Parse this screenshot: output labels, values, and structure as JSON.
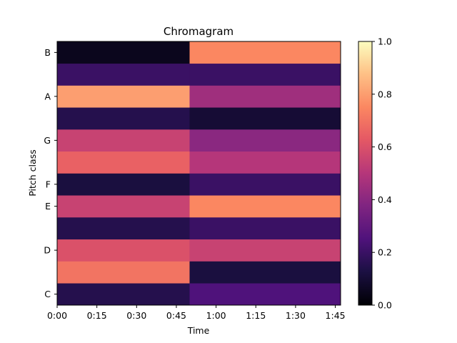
{
  "chart_data": {
    "type": "heatmap",
    "title": "Chromagram",
    "xlabel": "Time",
    "ylabel": "Pitch class",
    "x_ticks": [
      "0:00",
      "0:15",
      "0:30",
      "0:45",
      "1:00",
      "1:15",
      "1:30",
      "1:45"
    ],
    "x_tick_seconds": [
      0,
      15,
      30,
      45,
      60,
      75,
      90,
      105
    ],
    "xlim_seconds": [
      0,
      107
    ],
    "pitch_classes": [
      "C",
      "C#",
      "D",
      "D#",
      "E",
      "F",
      "F#",
      "G",
      "G#",
      "A",
      "A#",
      "B"
    ],
    "y_ticks": [
      "C",
      "D",
      "E",
      "F",
      "G",
      "A",
      "B"
    ],
    "colormap": "magma",
    "colorbar": {
      "vmin": 0.0,
      "vmax": 1.0,
      "ticks": [
        "0.0",
        "0.2",
        "0.4",
        "0.6",
        "0.8",
        "1.0"
      ],
      "tick_values": [
        0.0,
        0.2,
        0.4,
        0.6,
        0.8,
        1.0
      ]
    },
    "segments": [
      {
        "time_range": [
          0,
          50
        ],
        "level_by_pitch_class": {
          "C": 0.15,
          "C#": 0.7,
          "D": 0.6,
          "D#": 0.15,
          "E": 0.55,
          "F": 0.12,
          "F#": 0.65,
          "G": 0.55,
          "G#": 0.15,
          "A": 0.8,
          "A#": 0.2,
          "B": 0.05
        }
      },
      {
        "time_range": [
          50,
          107
        ],
        "level_by_pitch_class": {
          "C": 0.25,
          "C#": 0.12,
          "D": 0.55,
          "D#": 0.2,
          "E": 0.75,
          "F": 0.2,
          "F#": 0.5,
          "G": 0.4,
          "G#": 0.1,
          "A": 0.45,
          "A#": 0.2,
          "B": 0.75
        }
      }
    ]
  }
}
